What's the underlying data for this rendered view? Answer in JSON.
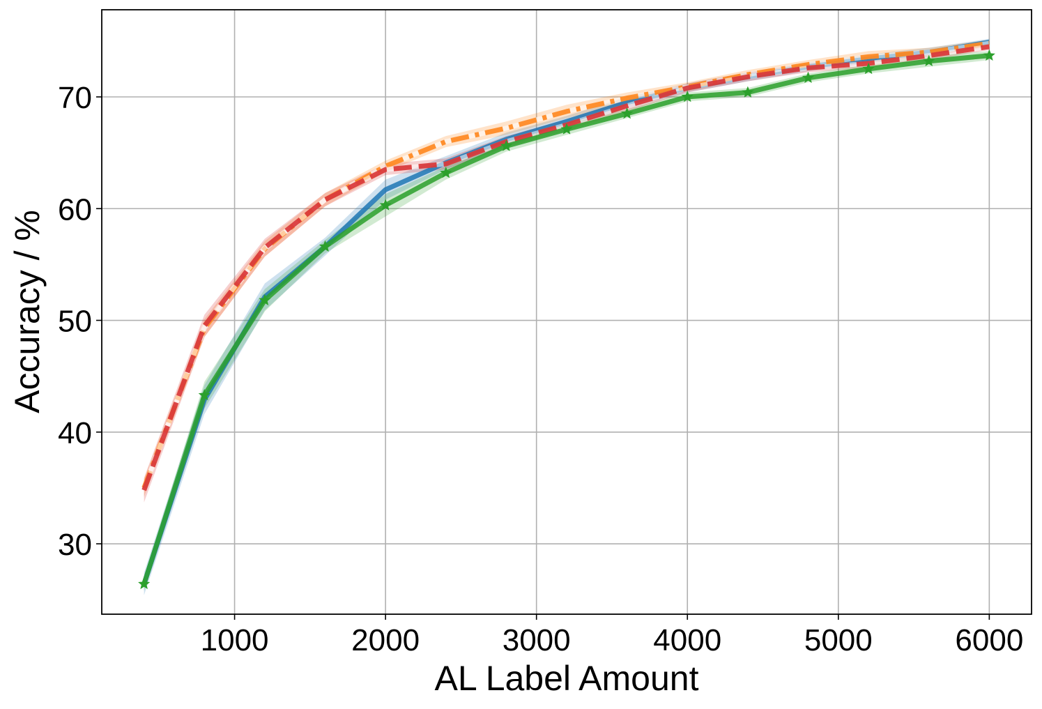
{
  "chart_data": {
    "type": "line",
    "title": "",
    "xlabel": "AL Label Amount",
    "ylabel": "Accuracy / %",
    "xlim": [
      120,
      6280
    ],
    "ylim": [
      23.7,
      77.8
    ],
    "xticks": [
      1000,
      2000,
      3000,
      4000,
      5000,
      6000
    ],
    "yticks": [
      30,
      40,
      50,
      60,
      70
    ],
    "grid": true,
    "legend": "none",
    "x": [
      400,
      800,
      1200,
      1600,
      2000,
      2400,
      2800,
      3200,
      3600,
      4000,
      4400,
      4800,
      5200,
      5600,
      6000
    ],
    "series": [
      {
        "color": "#1f77b4",
        "style": "solid",
        "marker": "none",
        "values": [
          26.4,
          42.9,
          52.1,
          56.6,
          61.7,
          64.1,
          66.2,
          67.8,
          69.5,
          70.8,
          71.8,
          72.7,
          73.4,
          74.0,
          74.9
        ],
        "band": [
          1.0,
          1.3,
          1.2,
          0.8,
          0.9,
          0.6,
          0.6,
          0.5,
          0.5,
          0.4,
          0.4,
          0.4,
          0.4,
          0.4,
          0.3
        ]
      },
      {
        "color": "#ff7f0e",
        "style": "dashdot",
        "marker": "none",
        "values": [
          35.0,
          49.3,
          56.4,
          60.8,
          63.8,
          66.0,
          67.2,
          68.7,
          69.9,
          70.9,
          72.0,
          72.9,
          73.6,
          74.0,
          74.8
        ],
        "band": [
          0.8,
          0.8,
          0.7,
          0.6,
          0.5,
          0.5,
          0.6,
          0.6,
          0.5,
          0.4,
          0.4,
          0.4,
          0.5,
          0.4,
          0.3
        ]
      },
      {
        "color": "#d62728",
        "style": "dashed",
        "marker": "none",
        "values": [
          34.8,
          49.5,
          56.5,
          60.8,
          63.5,
          64.0,
          66.0,
          67.5,
          69.2,
          70.8,
          71.8,
          72.6,
          73.0,
          73.7,
          74.5
        ],
        "band": [
          1.1,
          1.0,
          0.8,
          0.6,
          0.5,
          0.5,
          0.5,
          0.5,
          0.5,
          0.4,
          0.4,
          0.4,
          0.4,
          0.4,
          0.3
        ]
      },
      {
        "color": "#2ca02c",
        "style": "solid",
        "marker": "star",
        "values": [
          26.4,
          43.3,
          51.8,
          56.6,
          60.3,
          63.2,
          65.6,
          67.1,
          68.5,
          70.0,
          70.4,
          71.7,
          72.5,
          73.2,
          73.7
        ],
        "band": [
          0.6,
          1.2,
          1.0,
          0.6,
          1.0,
          0.6,
          0.5,
          0.5,
          0.4,
          0.4,
          0.4,
          0.4,
          0.4,
          0.5,
          0.4
        ]
      }
    ]
  }
}
